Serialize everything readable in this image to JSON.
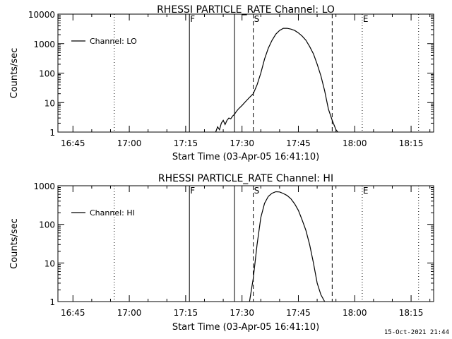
{
  "footer": {
    "timestamp": "15-Oct-2021 21:44"
  },
  "colors": {
    "background": "#ffffff",
    "foreground": "#000000"
  },
  "chart_data": [
    {
      "type": "line",
      "title": "RHESSI PARTICLE_RATE Channel: LO",
      "xlabel": "Start Time (03-Apr-05 16:41:10)",
      "ylabel": "Counts/sec",
      "xlim": [
        "16:41",
        "18:21"
      ],
      "ylim": [
        1,
        10000
      ],
      "yscale": "log",
      "yticks": [
        1,
        10,
        100,
        1000,
        10000
      ],
      "ytick_labels": [
        "1",
        "10",
        "100",
        "1000",
        "10000"
      ],
      "xtick_labels": [
        "16:45",
        "17:00",
        "17:15",
        "17:30",
        "17:45",
        "18:00",
        "18:15"
      ],
      "legend": {
        "entries": [
          "Channel: LO"
        ],
        "placement": "top-left"
      },
      "markers": [
        {
          "label": "F",
          "time": "17:16",
          "style": "solid"
        },
        {
          "label": "",
          "time": "17:28",
          "style": "solid"
        },
        {
          "label": "S",
          "time": "17:33",
          "style": "dashed"
        },
        {
          "label": "",
          "time": "17:54",
          "style": "dashed"
        },
        {
          "label": "E",
          "time": "18:02",
          "style": "dotted"
        },
        {
          "label": "",
          "time": "16:56",
          "style": "dotted"
        },
        {
          "label": "",
          "time": "18:17",
          "style": "dotted"
        }
      ],
      "series": [
        {
          "name": "Channel: LO",
          "x": [
            "17:23",
            "17:23.5",
            "17:24",
            "17:24.5",
            "17:25",
            "17:25.5",
            "17:26",
            "17:26.5",
            "17:27",
            "17:27.5",
            "17:28",
            "17:28.5",
            "17:29",
            "17:30",
            "17:31",
            "17:32",
            "17:33",
            "17:34",
            "17:35",
            "17:36",
            "17:37",
            "17:38",
            "17:39",
            "17:40",
            "17:41",
            "17:42",
            "17:43",
            "17:44",
            "17:45",
            "17:46",
            "17:47",
            "17:48",
            "17:49",
            "17:50",
            "17:51",
            "17:52",
            "17:53",
            "17:54",
            "17:55",
            "17:55.5"
          ],
          "y": [
            1,
            1.5,
            1.2,
            2,
            2.5,
            1.8,
            2.5,
            3,
            2.8,
            3.5,
            4,
            5,
            6,
            8,
            11,
            15,
            20,
            40,
            100,
            300,
            700,
            1300,
            2100,
            2800,
            3300,
            3300,
            3100,
            2800,
            2300,
            1800,
            1300,
            800,
            450,
            200,
            80,
            25,
            6,
            2.5,
            1.2,
            1
          ]
        }
      ]
    },
    {
      "type": "line",
      "title": "RHESSI PARTICLE_RATE Channel: HI",
      "xlabel": "Start Time (03-Apr-05 16:41:10)",
      "ylabel": "Counts/sec",
      "xlim": [
        "16:41",
        "18:21"
      ],
      "ylim": [
        1,
        1000
      ],
      "yscale": "log",
      "yticks": [
        1,
        10,
        100,
        1000
      ],
      "ytick_labels": [
        "1",
        "10",
        "100",
        "1000"
      ],
      "xtick_labels": [
        "16:45",
        "17:00",
        "17:15",
        "17:30",
        "17:45",
        "18:00",
        "18:15"
      ],
      "legend": {
        "entries": [
          "Channel: HI"
        ],
        "placement": "top-left"
      },
      "markers": [
        {
          "label": "F",
          "time": "17:16",
          "style": "solid"
        },
        {
          "label": "",
          "time": "17:28",
          "style": "solid"
        },
        {
          "label": "S",
          "time": "17:33",
          "style": "dashed"
        },
        {
          "label": "",
          "time": "17:54",
          "style": "dashed"
        },
        {
          "label": "E",
          "time": "18:02",
          "style": "dotted"
        },
        {
          "label": "",
          "time": "16:56",
          "style": "dotted"
        },
        {
          "label": "",
          "time": "18:17",
          "style": "dotted"
        }
      ],
      "series": [
        {
          "name": "Channel: HI",
          "x": [
            "17:32",
            "17:33",
            "17:34",
            "17:35",
            "17:36",
            "17:37",
            "17:38",
            "17:39",
            "17:40",
            "17:41",
            "17:42",
            "17:43",
            "17:44",
            "17:45",
            "17:46",
            "17:47",
            "17:48",
            "17:49",
            "17:50",
            "17:51",
            "17:52"
          ],
          "y": [
            1,
            4,
            30,
            150,
            350,
            530,
            640,
            700,
            690,
            630,
            560,
            460,
            340,
            230,
            130,
            70,
            30,
            10,
            3,
            1.5,
            1
          ]
        }
      ]
    }
  ]
}
